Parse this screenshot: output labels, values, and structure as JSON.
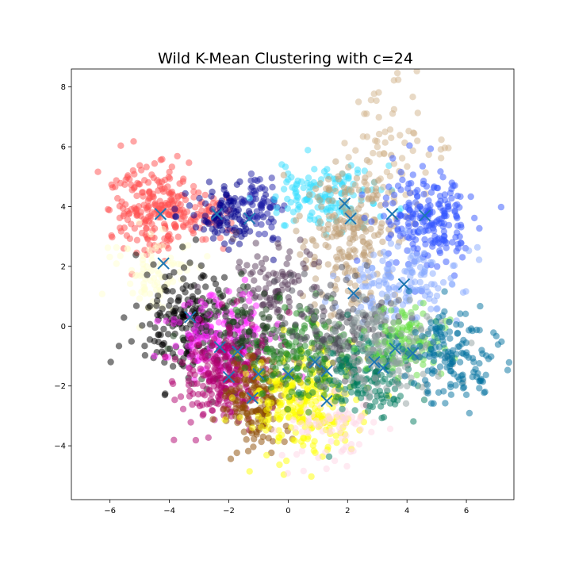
{
  "chart_data": {
    "type": "scatter",
    "title": "Wild K-Mean Clustering with c=24",
    "xlabel": "",
    "ylabel": "",
    "xlim": [
      -7.3,
      7.6
    ],
    "ylim": [
      -5.8,
      8.6
    ],
    "xticks": [
      -6,
      -4,
      -2,
      0,
      2,
      4,
      6
    ],
    "yticks": [
      -4,
      -2,
      0,
      2,
      4,
      6,
      8
    ],
    "xtick_labels": [
      "−6",
      "−4",
      "−2",
      "0",
      "2",
      "4",
      "6"
    ],
    "ytick_labels": [
      "−4",
      "−2",
      "0",
      "2",
      "4",
      "6",
      "8"
    ],
    "grid": false,
    "legend": false,
    "centroid_color": "#1f77b4",
    "centroid_marker": "x",
    "centroids": [
      {
        "x": -4.3,
        "y": 3.75
      },
      {
        "x": -2.4,
        "y": 3.75
      },
      {
        "x": -1.3,
        "y": 3.6
      },
      {
        "x": 1.9,
        "y": 4.1
      },
      {
        "x": 2.1,
        "y": 3.6
      },
      {
        "x": 3.5,
        "y": 3.75
      },
      {
        "x": 4.6,
        "y": 3.7
      },
      {
        "x": 3.9,
        "y": 1.4
      },
      {
        "x": 2.2,
        "y": 1.1
      },
      {
        "x": -4.2,
        "y": 2.1
      },
      {
        "x": -3.3,
        "y": 0.3
      },
      {
        "x": -2.3,
        "y": -0.7
      },
      {
        "x": -1.7,
        "y": -0.85
      },
      {
        "x": -2.0,
        "y": -1.7
      },
      {
        "x": -1.0,
        "y": -1.6
      },
      {
        "x": -1.2,
        "y": -2.4
      },
      {
        "x": 0.0,
        "y": -1.6
      },
      {
        "x": 0.9,
        "y": -1.2
      },
      {
        "x": 1.3,
        "y": -2.5
      },
      {
        "x": 1.3,
        "y": -1.5
      },
      {
        "x": 2.9,
        "y": -1.2
      },
      {
        "x": 3.2,
        "y": -1.4
      },
      {
        "x": 3.6,
        "y": -0.75
      },
      {
        "x": 4.2,
        "y": -0.9
      }
    ],
    "series": [
      {
        "color": "#ff4d4d",
        "center": [
          -4.5,
          3.9
        ],
        "spread": [
          0.7,
          0.75
        ],
        "n": 220
      },
      {
        "color": "#ff5a5a",
        "center": [
          -2.8,
          3.7
        ],
        "spread": [
          0.45,
          0.35
        ],
        "n": 60
      },
      {
        "color": "#00008b",
        "center": [
          -2.1,
          3.7
        ],
        "spread": [
          0.6,
          0.55
        ],
        "n": 110
      },
      {
        "color": "#1f1fa8",
        "center": [
          -0.9,
          4.1
        ],
        "spread": [
          0.45,
          0.55
        ],
        "n": 60
      },
      {
        "color": "#33ddff",
        "center": [
          1.3,
          4.4
        ],
        "spread": [
          0.9,
          0.55
        ],
        "n": 150
      },
      {
        "color": "#bfa077",
        "center": [
          2.1,
          3.0
        ],
        "spread": [
          0.8,
          1.2
        ],
        "n": 220
      },
      {
        "color": "#d2b48c",
        "center": [
          3.6,
          5.8
        ],
        "spread": [
          0.9,
          1.0
        ],
        "n": 70
      },
      {
        "color": "#3355ff",
        "center": [
          4.6,
          3.6
        ],
        "spread": [
          0.8,
          0.85
        ],
        "n": 220
      },
      {
        "color": "#88aaff",
        "center": [
          3.9,
          1.4
        ],
        "spread": [
          0.9,
          0.7
        ],
        "n": 150
      },
      {
        "color": "#ffffd0",
        "center": [
          -4.4,
          1.8
        ],
        "spread": [
          0.6,
          0.7
        ],
        "n": 90
      },
      {
        "color": "#000000",
        "center": [
          -3.4,
          0.2
        ],
        "spread": [
          0.8,
          0.9
        ],
        "n": 200
      },
      {
        "color": "#5a3d5c",
        "center": [
          -0.5,
          1.2
        ],
        "spread": [
          0.9,
          0.8
        ],
        "n": 120
      },
      {
        "color": "#ff22ff",
        "center": [
          -2.3,
          -0.4
        ],
        "spread": [
          0.9,
          0.7
        ],
        "n": 180
      },
      {
        "color": "#1a3d1a",
        "center": [
          -1.5,
          -0.5
        ],
        "spread": [
          0.8,
          0.8
        ],
        "n": 150
      },
      {
        "color": "#b0006e",
        "center": [
          -2.0,
          -1.8
        ],
        "spread": [
          0.8,
          0.8
        ],
        "n": 250
      },
      {
        "color": "#8b4a00",
        "center": [
          -1.1,
          -2.5
        ],
        "spread": [
          0.6,
          0.8
        ],
        "n": 170
      },
      {
        "color": "#ffff00",
        "center": [
          0.5,
          -2.5
        ],
        "spread": [
          0.9,
          0.9
        ],
        "n": 280
      },
      {
        "color": "#ffd6e6",
        "center": [
          1.5,
          -3.3
        ],
        "spread": [
          0.8,
          0.6
        ],
        "n": 80
      },
      {
        "color": "#228b22",
        "center": [
          0.5,
          -1.0
        ],
        "spread": [
          0.9,
          0.8
        ],
        "n": 170
      },
      {
        "color": "#4d4d59",
        "center": [
          1.8,
          -0.3
        ],
        "spread": [
          0.9,
          0.8
        ],
        "n": 160
      },
      {
        "color": "#007a5e",
        "center": [
          2.6,
          -1.6
        ],
        "spread": [
          0.8,
          0.8
        ],
        "n": 170
      },
      {
        "color": "#66dd44",
        "center": [
          3.8,
          -0.5
        ],
        "spread": [
          0.7,
          0.6
        ],
        "n": 110
      },
      {
        "color": "#8fa0a0",
        "center": [
          3.3,
          -0.7
        ],
        "spread": [
          1.0,
          0.9
        ],
        "n": 150
      },
      {
        "color": "#00709e",
        "center": [
          5.4,
          -1.1
        ],
        "spread": [
          0.8,
          0.8
        ],
        "n": 150
      }
    ]
  }
}
